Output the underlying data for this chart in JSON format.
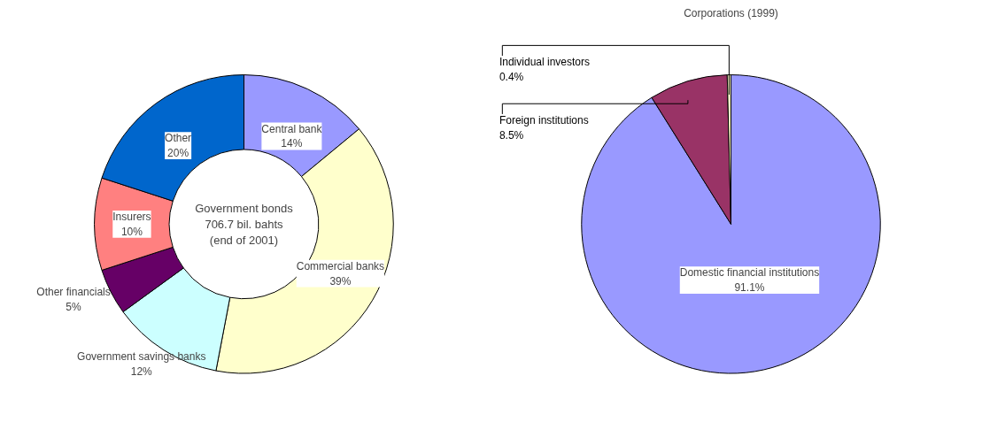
{
  "chart_data": [
    {
      "type": "donut",
      "annotations": [
        "Government bonds\n706.7 bil. bahts\n(end of 2001)"
      ],
      "categories": [
        "Central bank",
        "Commercial banks",
        "Government savings banks",
        "Other financials",
        "Insurers",
        "Other"
      ],
      "values": [
        14,
        39,
        12,
        5,
        10,
        20
      ],
      "value_labels": [
        "14%",
        "39%",
        "12%",
        "5%",
        "10%",
        "20%"
      ],
      "colors": [
        "#9999ff",
        "#ffffcc",
        "#ccffff",
        "#660066",
        "#ff8080",
        "#0066cc"
      ]
    },
    {
      "type": "pie",
      "title": "Corporations (1999)",
      "categories": [
        "Domestic financial institutions",
        "Foreign institutions",
        "Individual investors"
      ],
      "values": [
        91.1,
        8.5,
        0.4
      ],
      "value_labels": [
        "91.1%",
        "8.5%",
        "0.4%"
      ],
      "colors": [
        "#9999ff",
        "#993366",
        "#ffffcc"
      ]
    }
  ]
}
